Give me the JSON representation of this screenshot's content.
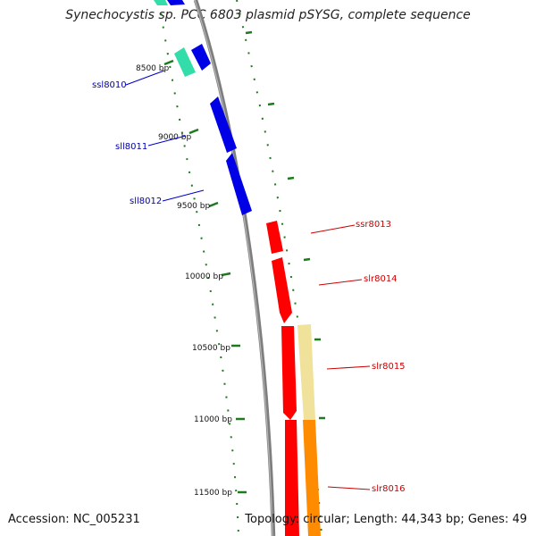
{
  "title": "Synechocystis sp. PCC 6803 plasmid pSYSG, complete sequence",
  "footer": {
    "accession": "Accession: NC_005231",
    "summary": "Topology: circular; Length: 44,343 bp; Genes: 49"
  },
  "colors": {
    "backbone": "#8a8a8a",
    "reverse_strand_gene": "#0000e6",
    "reverse_strand_label": "#0000b0",
    "forward_strand_gene": "#ff0000",
    "forward_strand_label": "#cc0000",
    "teal_feature": "#33ddaa",
    "yellow_feature": "#f0e29a",
    "orange_feature": "#ff8c00",
    "tick": "#1e7a1e"
  },
  "scale_labels": [
    "8500 bp",
    "9000 bp",
    "9500 bp",
    "10000 bp",
    "10500 bp",
    "11000 bp",
    "11500 bp"
  ],
  "reverse_genes": [
    "ssl8010",
    "sll8011",
    "sll8012"
  ],
  "forward_genes": [
    "ssr8013",
    "slr8014",
    "slr8015",
    "slr8016"
  ]
}
